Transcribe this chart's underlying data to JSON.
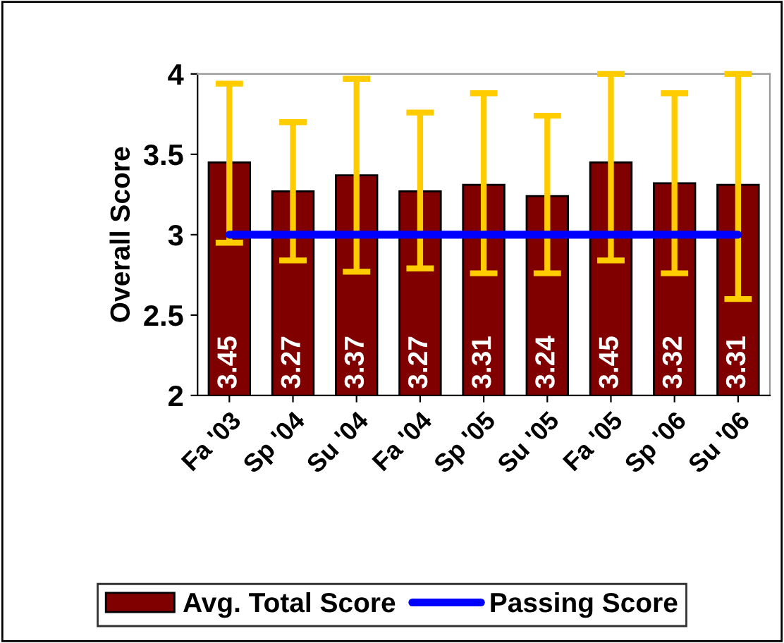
{
  "chart_data": {
    "type": "bar",
    "ylabel": "Overall Score",
    "categories": [
      "Fa '03",
      "Sp '04",
      "Su '04",
      "Fa '04",
      "Sp '05",
      "Su '05",
      "Fa '05",
      "Sp '06",
      "Su '06"
    ],
    "series": [
      {
        "name": "Avg. Total Score",
        "color": "#800000",
        "values": [
          3.45,
          3.27,
          3.37,
          3.27,
          3.31,
          3.24,
          3.45,
          3.32,
          3.31
        ],
        "value_labels": [
          "3.45",
          "3.27",
          "3.37",
          "3.27",
          "3.31",
          "3.24",
          "3.45",
          "3.32",
          "3.31"
        ],
        "errors": [
          [
            2.95,
            3.94
          ],
          [
            2.84,
            3.7
          ],
          [
            2.77,
            3.97
          ],
          [
            2.79,
            3.76
          ],
          [
            2.76,
            3.88
          ],
          [
            2.76,
            3.74
          ],
          [
            2.84,
            4.0
          ],
          [
            2.76,
            3.88
          ],
          [
            2.6,
            4.0
          ]
        ]
      },
      {
        "name": "Passing Score",
        "type": "line",
        "color": "#0000ff",
        "values": [
          3,
          3,
          3,
          3,
          3,
          3,
          3,
          3,
          3
        ]
      }
    ],
    "ylim": [
      2,
      4
    ],
    "yticks": [
      2,
      2.5,
      3,
      3.5,
      4
    ],
    "legend": "bottom",
    "grid": false
  }
}
